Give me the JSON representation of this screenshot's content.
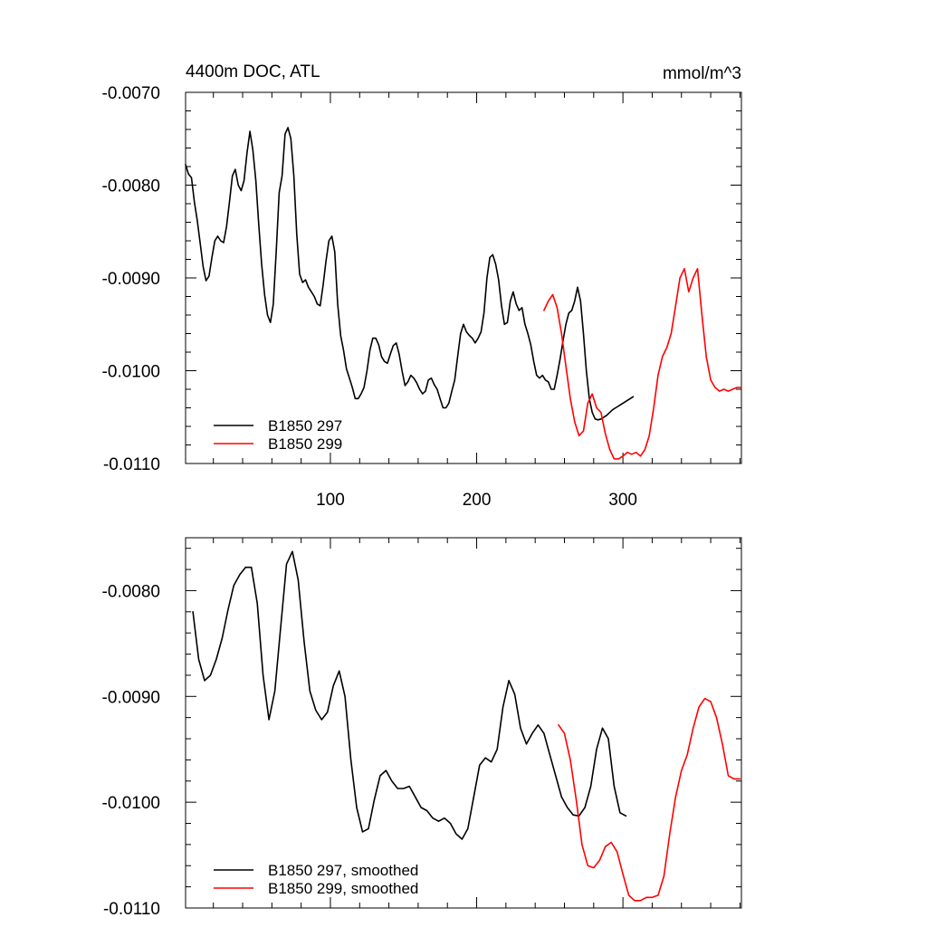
{
  "chart_data": [
    {
      "type": "line",
      "title": "4400m DOC, ATL",
      "units": "mmol/m^3",
      "xlim": [
        1,
        381
      ],
      "ylim": [
        -0.011,
        -0.007
      ],
      "x_ticks": [
        100,
        200,
        300
      ],
      "x_tick_labels": [
        "100",
        "200",
        "300"
      ],
      "y_ticks": [
        -0.007,
        -0.008,
        -0.009,
        -0.01,
        -0.011
      ],
      "y_tick_labels": [
        "-0.0070",
        "-0.0080",
        "-0.0090",
        "-0.0100",
        "-0.0110"
      ],
      "grid": false,
      "legend_position": "bottom-left",
      "series": [
        {
          "name": "B1850 297",
          "color": "#000000",
          "x": [
            1,
            3,
            5,
            7,
            9,
            11,
            13,
            15,
            17,
            19,
            21,
            23,
            25,
            27,
            29,
            31,
            33,
            35,
            37,
            39,
            41,
            43,
            45,
            47,
            49,
            51,
            53,
            55,
            57,
            59,
            61,
            63,
            65,
            67,
            69,
            71,
            73,
            75,
            77,
            79,
            81,
            83,
            85,
            87,
            89,
            91,
            93,
            95,
            97,
            99,
            101,
            103,
            105,
            107,
            109,
            111,
            113,
            115,
            117,
            119,
            121,
            123,
            125,
            127,
            129,
            131,
            133,
            135,
            137,
            139,
            141,
            143,
            145,
            147,
            149,
            151,
            153,
            155,
            157,
            159,
            161,
            163,
            165,
            167,
            169,
            171,
            173,
            175,
            177,
            179,
            181,
            183,
            185,
            187,
            189,
            191,
            193,
            195,
            197,
            199,
            201,
            203,
            205,
            207,
            209,
            211,
            213,
            215,
            217,
            219,
            221,
            223,
            225,
            227,
            229,
            231,
            233,
            235,
            237,
            239,
            241,
            243,
            245,
            247,
            249,
            251,
            253,
            255,
            257,
            259,
            261,
            263,
            265,
            267,
            269,
            271,
            273,
            275,
            277,
            279,
            281,
            283,
            285,
            287,
            289,
            291,
            293,
            295,
            297,
            299,
            301,
            303,
            305,
            307
          ],
          "values": [
            -0.00778,
            -0.00788,
            -0.00792,
            -0.00818,
            -0.00838,
            -0.00863,
            -0.00888,
            -0.00903,
            -0.00898,
            -0.00878,
            -0.0086,
            -0.00855,
            -0.0086,
            -0.00862,
            -0.00845,
            -0.00818,
            -0.0079,
            -0.00783,
            -0.008,
            -0.00806,
            -0.00795,
            -0.00765,
            -0.00742,
            -0.00762,
            -0.00795,
            -0.00842,
            -0.00885,
            -0.00918,
            -0.0094,
            -0.00948,
            -0.00928,
            -0.0087,
            -0.00808,
            -0.0079,
            -0.00745,
            -0.00738,
            -0.0075,
            -0.0079,
            -0.00853,
            -0.00896,
            -0.00905,
            -0.00902,
            -0.0091,
            -0.00915,
            -0.0092,
            -0.00928,
            -0.0093,
            -0.00908,
            -0.00882,
            -0.0086,
            -0.00855,
            -0.00872,
            -0.00928,
            -0.00962,
            -0.00978,
            -0.00998,
            -0.01008,
            -0.01018,
            -0.0103,
            -0.0103,
            -0.01025,
            -0.01018,
            -0.01,
            -0.00978,
            -0.00965,
            -0.00965,
            -0.00972,
            -0.00985,
            -0.0099,
            -0.00992,
            -0.00982,
            -0.00973,
            -0.0097,
            -0.00982,
            -0.01,
            -0.01016,
            -0.01012,
            -0.01005,
            -0.01008,
            -0.01013,
            -0.0102,
            -0.01025,
            -0.01022,
            -0.0101,
            -0.01008,
            -0.01015,
            -0.0102,
            -0.0103,
            -0.0104,
            -0.0104,
            -0.01035,
            -0.01022,
            -0.0101,
            -0.00985,
            -0.0096,
            -0.0095,
            -0.00958,
            -0.00962,
            -0.00965,
            -0.0097,
            -0.00965,
            -0.00958,
            -0.00938,
            -0.009,
            -0.00878,
            -0.00875,
            -0.00885,
            -0.00902,
            -0.0093,
            -0.0095,
            -0.00948,
            -0.00925,
            -0.00915,
            -0.00928,
            -0.00935,
            -0.00932,
            -0.0095,
            -0.0096,
            -0.00972,
            -0.0099,
            -0.01005,
            -0.01008,
            -0.01005,
            -0.0101,
            -0.01012,
            -0.0102,
            -0.0102,
            -0.01005,
            -0.00988,
            -0.00968,
            -0.0095,
            -0.00938,
            -0.00935,
            -0.00925,
            -0.0091,
            -0.00925,
            -0.0096,
            -0.01,
            -0.0103,
            -0.01045,
            -0.01052,
            -0.01053,
            -0.01052,
            -0.0105,
            -0.01048,
            -0.01045,
            -0.01042,
            -0.0104,
            -0.01038,
            -0.01036,
            -0.01034,
            -0.01032,
            -0.0103,
            -0.01028
          ]
        },
        {
          "name": "B1850 299",
          "color": "#ff0000",
          "x": [
            246,
            249,
            252,
            255,
            258,
            261,
            264,
            267,
            270,
            273,
            276,
            279,
            282,
            285,
            288,
            291,
            294,
            297,
            300,
            303,
            306,
            309,
            312,
            315,
            318,
            321,
            324,
            327,
            330,
            333,
            336,
            339,
            342,
            345,
            348,
            351,
            354,
            357,
            360,
            363,
            366,
            369,
            372,
            375,
            378,
            381
          ],
          "values": [
            -0.00935,
            -0.00925,
            -0.00918,
            -0.00932,
            -0.0096,
            -0.00995,
            -0.0103,
            -0.01055,
            -0.0107,
            -0.01065,
            -0.01035,
            -0.01025,
            -0.0104,
            -0.01045,
            -0.01068,
            -0.01085,
            -0.01095,
            -0.01095,
            -0.01092,
            -0.01088,
            -0.0109,
            -0.01088,
            -0.01092,
            -0.01085,
            -0.0107,
            -0.0104,
            -0.01005,
            -0.00985,
            -0.00975,
            -0.0096,
            -0.0093,
            -0.009,
            -0.0089,
            -0.00915,
            -0.009,
            -0.0089,
            -0.0094,
            -0.00985,
            -0.0101,
            -0.01018,
            -0.01022,
            -0.0102,
            -0.01022,
            -0.0102,
            -0.01018,
            -0.01018
          ]
        }
      ]
    },
    {
      "type": "line",
      "xlim": [
        1,
        381
      ],
      "ylim": [
        -0.011,
        -0.0075
      ],
      "x_ticks": [
        100,
        200,
        300
      ],
      "x_tick_labels": [],
      "y_ticks": [
        -0.008,
        -0.009,
        -0.01,
        -0.011
      ],
      "y_tick_labels": [
        "-0.0080",
        "-0.0090",
        "-0.0100",
        "-0.0110"
      ],
      "grid": false,
      "legend_position": "bottom-left",
      "series": [
        {
          "name": "B1850 297, smoothed",
          "color": "#000000",
          "x": [
            6,
            10,
            14,
            18,
            22,
            26,
            30,
            34,
            38,
            42,
            46,
            50,
            54,
            58,
            62,
            66,
            70,
            74,
            78,
            82,
            86,
            90,
            94,
            98,
            102,
            106,
            110,
            114,
            118,
            122,
            126,
            130,
            134,
            138,
            142,
            146,
            150,
            154,
            158,
            162,
            166,
            170,
            174,
            178,
            182,
            186,
            190,
            194,
            198,
            202,
            206,
            210,
            214,
            218,
            222,
            226,
            230,
            234,
            238,
            242,
            246,
            250,
            254,
            258,
            262,
            266,
            270,
            274,
            278,
            282,
            286,
            290,
            294,
            298,
            302
          ],
          "values": [
            -0.0082,
            -0.00865,
            -0.00885,
            -0.0088,
            -0.00865,
            -0.00845,
            -0.00818,
            -0.00795,
            -0.00785,
            -0.00778,
            -0.00778,
            -0.00812,
            -0.0088,
            -0.00922,
            -0.00895,
            -0.00835,
            -0.00775,
            -0.00763,
            -0.0079,
            -0.00848,
            -0.00895,
            -0.00913,
            -0.00922,
            -0.00915,
            -0.0089,
            -0.00876,
            -0.009,
            -0.0096,
            -0.01005,
            -0.01028,
            -0.01025,
            -0.00998,
            -0.00975,
            -0.0097,
            -0.0098,
            -0.00987,
            -0.00987,
            -0.00985,
            -0.00995,
            -0.01005,
            -0.01008,
            -0.01015,
            -0.01018,
            -0.01015,
            -0.0102,
            -0.0103,
            -0.01035,
            -0.01025,
            -0.00995,
            -0.00965,
            -0.00958,
            -0.00962,
            -0.0095,
            -0.0091,
            -0.00885,
            -0.00898,
            -0.0093,
            -0.00945,
            -0.00935,
            -0.00927,
            -0.00935,
            -0.00955,
            -0.00975,
            -0.00995,
            -0.01005,
            -0.01012,
            -0.01013,
            -0.01005,
            -0.00985,
            -0.0095,
            -0.0093,
            -0.0094,
            -0.00985,
            -0.0101,
            -0.01013
          ]
        },
        {
          "name": "B1850 299, smoothed",
          "color": "#ff0000",
          "x": [
            256,
            260,
            264,
            268,
            272,
            276,
            280,
            284,
            288,
            292,
            296,
            300,
            304,
            308,
            312,
            316,
            320,
            324,
            328,
            332,
            336,
            340,
            344,
            348,
            352,
            356,
            360,
            364,
            368,
            372,
            376,
            380
          ],
          "values": [
            -0.00927,
            -0.00935,
            -0.0096,
            -0.00997,
            -0.0104,
            -0.0106,
            -0.01062,
            -0.01055,
            -0.01042,
            -0.01038,
            -0.01047,
            -0.01068,
            -0.01088,
            -0.01093,
            -0.01093,
            -0.0109,
            -0.0109,
            -0.01088,
            -0.0107,
            -0.0103,
            -0.00995,
            -0.0097,
            -0.00955,
            -0.0093,
            -0.0091,
            -0.00902,
            -0.00905,
            -0.0092,
            -0.00945,
            -0.00975,
            -0.00978,
            -0.00978
          ]
        }
      ]
    }
  ]
}
